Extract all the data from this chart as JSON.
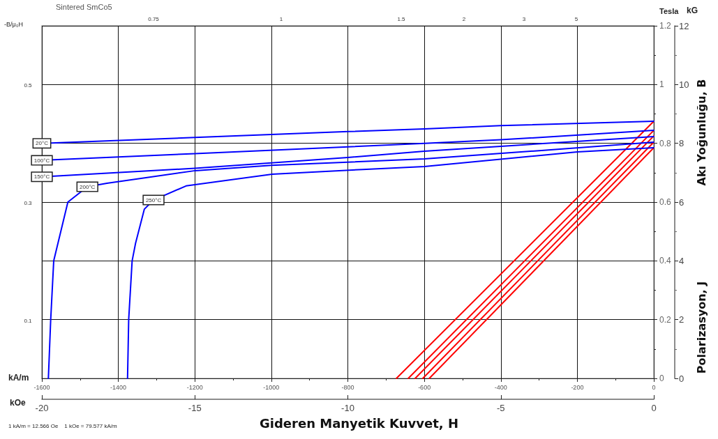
{
  "chart_data": {
    "type": "line",
    "title": "Sintered SmCo5",
    "xlabel": "Gideren Manyetik Kuvvet, H",
    "xlim": [
      -1600,
      0
    ],
    "xticks": [
      -1600,
      -1400,
      -1200,
      -1000,
      -800,
      -600,
      -400,
      -200,
      0
    ],
    "x2lim": [
      -20,
      0
    ],
    "x2ticks": [
      -20,
      -15,
      -10,
      -5,
      0
    ],
    "ylim": [
      0,
      1.2
    ],
    "yticks": [
      0,
      0.2,
      0.4,
      0.6,
      0.8,
      1,
      1.2
    ],
    "y2lim": [
      0,
      12
    ],
    "y2ticks": [
      0,
      2,
      4,
      6,
      8,
      10,
      12
    ],
    "grid": true,
    "legend": false,
    "marker": "none",
    "line_style": "solid",
    "annotations": [
      "kA/m",
      "kOe",
      "Tesla",
      "kG",
      "1 kA/m = 12.566 Oe    1 kOe = 79.577 kA/m",
      "-B/μ₀H",
      "0.75",
      "1",
      "1.5",
      "2",
      "3",
      "5",
      "0.5",
      "0.3",
      "0.1",
      "Polarizasyon, J",
      "Akı Yoğunluğu, B"
    ],
    "series": [
      {
        "name": "20°C",
        "color": "#0000ff",
        "x": [
          -1600,
          -1200,
          -800,
          -600,
          -400,
          0
        ],
        "values": [
          0.8,
          0.82,
          0.84,
          0.849,
          0.86,
          0.875
        ]
      },
      {
        "name": "100°C",
        "color": "#0000ff",
        "x": [
          -1600,
          -1200,
          -800,
          -600,
          -400,
          0
        ],
        "values": [
          0.742,
          0.765,
          0.788,
          0.8,
          0.812,
          0.844
        ]
      },
      {
        "name": "150°C",
        "color": "#0000ff",
        "x": [
          -1600,
          -1200,
          -800,
          -600,
          -400,
          0
        ],
        "values": [
          0.686,
          0.715,
          0.752,
          0.773,
          0.79,
          0.823
        ]
      },
      {
        "name": "200°C",
        "color": "#0000ff",
        "x": [
          -1583,
          -1577,
          -1569,
          -1532,
          -1481,
          -1430,
          -1199,
          -1000,
          -600,
          -300,
          0
        ],
        "values": [
          0,
          0.197,
          0.4,
          0.6,
          0.652,
          0.664,
          0.707,
          0.725,
          0.747,
          0.775,
          0.804
        ]
      },
      {
        "name": "250°C",
        "color": "#0000ff",
        "x": [
          -1376,
          -1373,
          -1364,
          -1355,
          -1332,
          -1308,
          -1223,
          -998,
          -761,
          -600,
          -200,
          0
        ],
        "values": [
          0,
          0.2,
          0.4,
          0.46,
          0.576,
          0.607,
          0.655,
          0.695,
          0.711,
          0.721,
          0.771,
          0.785
        ]
      },
      {
        "color": "#ff0000",
        "x": [
          -673,
          0
        ],
        "values": [
          0,
          0.875
        ]
      },
      {
        "color": "#ff0000",
        "x": [
          -642,
          0
        ],
        "values": [
          0,
          0.844
        ]
      },
      {
        "color": "#ff0000",
        "x": [
          -624,
          0
        ],
        "values": [
          0,
          0.825
        ]
      },
      {
        "color": "#ff0000",
        "x": [
          -604,
          0
        ],
        "values": [
          0,
          0.804
        ]
      },
      {
        "color": "#ff0000",
        "x": [
          -587,
          0
        ],
        "values": [
          0,
          0.785
        ]
      }
    ]
  }
}
